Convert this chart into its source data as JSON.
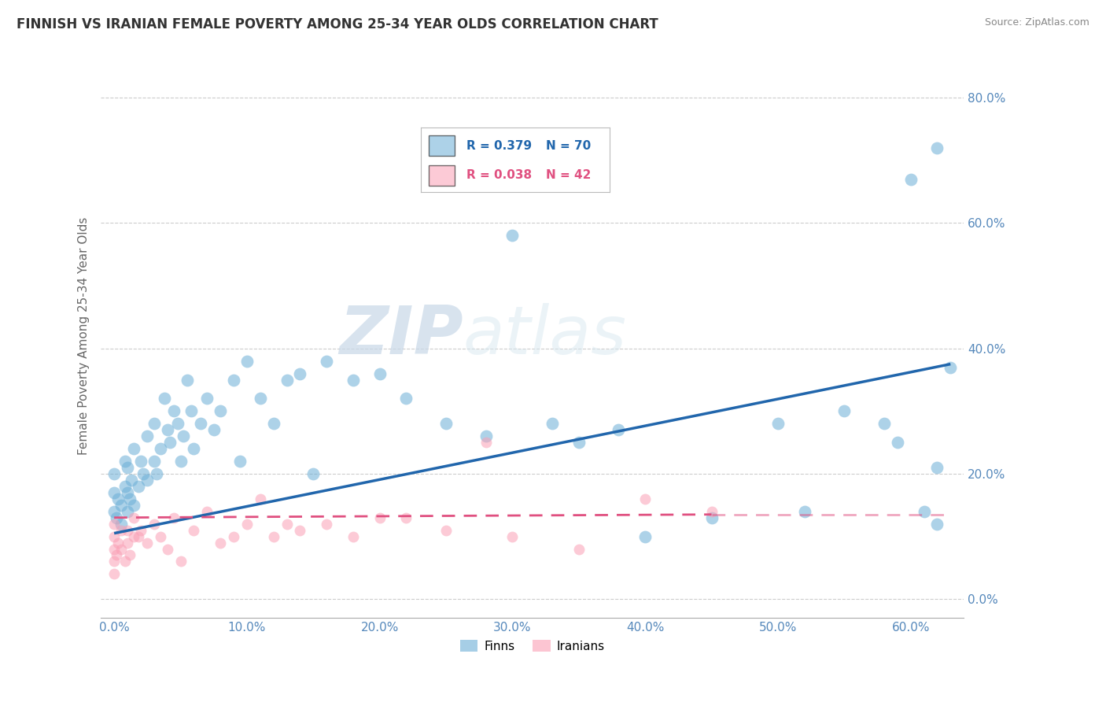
{
  "title": "FINNISH VS IRANIAN FEMALE POVERTY AMONG 25-34 YEAR OLDS CORRELATION CHART",
  "source": "Source: ZipAtlas.com",
  "xlabel_ticks": [
    "0.0%",
    "10.0%",
    "20.0%",
    "30.0%",
    "40.0%",
    "50.0%",
    "60.0%"
  ],
  "ylabel_ticks": [
    "0.0%",
    "20.0%",
    "40.0%",
    "60.0%",
    "80.0%"
  ],
  "xlabel_tick_vals": [
    0.0,
    0.1,
    0.2,
    0.3,
    0.4,
    0.5,
    0.6
  ],
  "ylabel_tick_vals": [
    0.0,
    0.2,
    0.4,
    0.6,
    0.8
  ],
  "xlim": [
    -0.01,
    0.64
  ],
  "ylim": [
    -0.03,
    0.87
  ],
  "ylabel": "Female Poverty Among 25-34 Year Olds",
  "legend_finn_R": "R = 0.379",
  "legend_finn_N": "N = 70",
  "legend_iran_R": "R = 0.038",
  "legend_iran_N": "N = 42",
  "finn_color": "#6baed6",
  "iran_color": "#fa9fb5",
  "finn_line_color": "#2166ac",
  "iran_line_color": "#e05080",
  "watermark_zip": "ZIP",
  "watermark_atlas": "atlas",
  "finn_x": [
    0.0,
    0.0,
    0.0,
    0.002,
    0.003,
    0.005,
    0.005,
    0.008,
    0.008,
    0.01,
    0.01,
    0.01,
    0.012,
    0.013,
    0.015,
    0.015,
    0.018,
    0.02,
    0.022,
    0.025,
    0.025,
    0.03,
    0.03,
    0.032,
    0.035,
    0.038,
    0.04,
    0.042,
    0.045,
    0.048,
    0.05,
    0.052,
    0.055,
    0.058,
    0.06,
    0.065,
    0.07,
    0.075,
    0.08,
    0.09,
    0.095,
    0.1,
    0.11,
    0.12,
    0.13,
    0.14,
    0.15,
    0.16,
    0.18,
    0.2,
    0.22,
    0.25,
    0.28,
    0.3,
    0.33,
    0.35,
    0.38,
    0.4,
    0.45,
    0.5,
    0.52,
    0.55,
    0.58,
    0.59,
    0.6,
    0.61,
    0.62,
    0.62,
    0.62,
    0.63
  ],
  "finn_y": [
    0.14,
    0.17,
    0.2,
    0.13,
    0.16,
    0.12,
    0.15,
    0.18,
    0.22,
    0.14,
    0.17,
    0.21,
    0.16,
    0.19,
    0.15,
    0.24,
    0.18,
    0.22,
    0.2,
    0.19,
    0.26,
    0.22,
    0.28,
    0.2,
    0.24,
    0.32,
    0.27,
    0.25,
    0.3,
    0.28,
    0.22,
    0.26,
    0.35,
    0.3,
    0.24,
    0.28,
    0.32,
    0.27,
    0.3,
    0.35,
    0.22,
    0.38,
    0.32,
    0.28,
    0.35,
    0.36,
    0.2,
    0.38,
    0.35,
    0.36,
    0.32,
    0.28,
    0.26,
    0.58,
    0.28,
    0.25,
    0.27,
    0.1,
    0.13,
    0.28,
    0.14,
    0.3,
    0.28,
    0.25,
    0.67,
    0.14,
    0.12,
    0.21,
    0.72,
    0.37
  ],
  "iran_x": [
    0.0,
    0.0,
    0.0,
    0.0,
    0.0,
    0.002,
    0.003,
    0.005,
    0.005,
    0.008,
    0.01,
    0.01,
    0.012,
    0.015,
    0.015,
    0.018,
    0.02,
    0.025,
    0.03,
    0.035,
    0.04,
    0.045,
    0.05,
    0.06,
    0.07,
    0.08,
    0.09,
    0.1,
    0.11,
    0.12,
    0.13,
    0.14,
    0.16,
    0.18,
    0.2,
    0.22,
    0.25,
    0.28,
    0.3,
    0.35,
    0.4,
    0.45
  ],
  "iran_y": [
    0.04,
    0.06,
    0.08,
    0.1,
    0.12,
    0.07,
    0.09,
    0.08,
    0.11,
    0.06,
    0.09,
    0.11,
    0.07,
    0.1,
    0.13,
    0.1,
    0.11,
    0.09,
    0.12,
    0.1,
    0.08,
    0.13,
    0.06,
    0.11,
    0.14,
    0.09,
    0.1,
    0.12,
    0.16,
    0.1,
    0.12,
    0.11,
    0.12,
    0.1,
    0.13,
    0.13,
    0.11,
    0.25,
    0.1,
    0.08,
    0.16,
    0.14
  ],
  "finn_marker_size": 130,
  "iran_marker_size": 100,
  "background_color": "#ffffff",
  "grid_color": "#cccccc",
  "finn_trend_x0": 0.0,
  "finn_trend_y0": 0.105,
  "finn_trend_x1": 0.63,
  "finn_trend_y1": 0.375,
  "iran_trend_x0": 0.0,
  "iran_trend_y0": 0.13,
  "iran_trend_x1": 0.45,
  "iran_trend_y1": 0.135
}
